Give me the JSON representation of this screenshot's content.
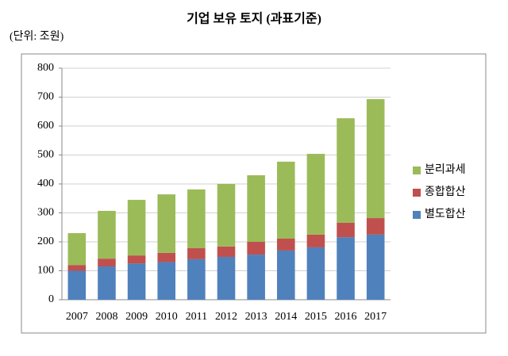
{
  "chart_data": {
    "type": "stacked_bar",
    "title": "기업 보유 토지 (과표기준)",
    "unit": "(단위: 조원)",
    "categories": [
      "2007",
      "2008",
      "2009",
      "2010",
      "2011",
      "2012",
      "2013",
      "2014",
      "2015",
      "2016",
      "2017"
    ],
    "series": [
      {
        "name": "별도합산",
        "color": "#4f81bd",
        "values": [
          100,
          115,
          125,
          130,
          140,
          148,
          156,
          170,
          181,
          216,
          225
        ]
      },
      {
        "name": "종합합산",
        "color": "#c0504d",
        "values": [
          20,
          27,
          28,
          32,
          38,
          36,
          44,
          41,
          44,
          50,
          57
        ]
      },
      {
        "name": "분리과세",
        "color": "#9bbb59",
        "values": [
          110,
          165,
          192,
          202,
          203,
          216,
          230,
          266,
          279,
          361,
          411
        ]
      }
    ],
    "ylim": [
      0,
      800
    ],
    "yticks": [
      0,
      100,
      200,
      300,
      400,
      500,
      600,
      700,
      800
    ],
    "grid": true,
    "legend": "right"
  }
}
